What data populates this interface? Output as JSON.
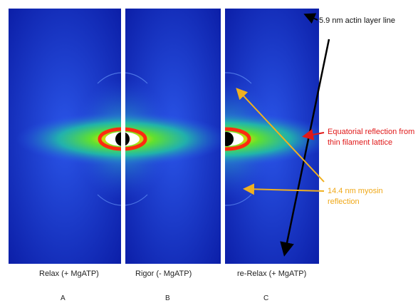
{
  "annotations": {
    "actin": "5.9 nm actin layer line",
    "equatorial": "Equatorial reflection from thin filament lattice",
    "myosin": "14.4 nm myosin reflection"
  },
  "panels": [
    {
      "caption": "Relax (+ MgATP)",
      "letter": "A"
    },
    {
      "caption": "Rigor (- MgATP)",
      "letter": "B"
    },
    {
      "caption": "re-Relax (+ MgATP)",
      "letter": "C"
    }
  ]
}
